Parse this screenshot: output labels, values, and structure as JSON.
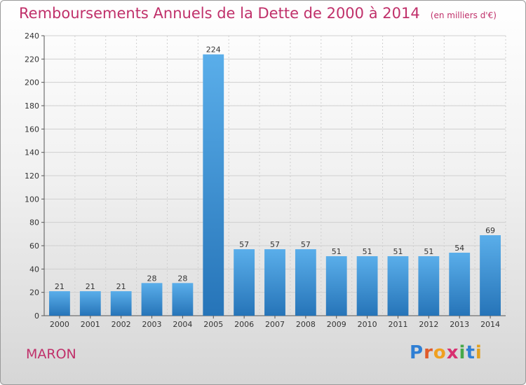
{
  "page": {
    "title": "Remboursements Annuels de la Dette de 2000 à 2014",
    "unit": "(en milliers d'€)",
    "commune": "MARON",
    "logo": {
      "text": "Proxiti",
      "letters": [
        {
          "ch": "P",
          "color": "#2f7fd4"
        },
        {
          "ch": "r",
          "color": "#e05a2a"
        },
        {
          "ch": "o",
          "color": "#f0a020"
        },
        {
          "ch": "x",
          "color": "#d83070"
        },
        {
          "ch": "i",
          "color": "#46a84a"
        },
        {
          "ch": "t",
          "color": "#2f7fd4"
        },
        {
          "ch": "i",
          "color": "#e0a020"
        }
      ]
    }
  },
  "colors": {
    "bar_light": "#5aaeea",
    "bar_dark": "#2674b8",
    "title": "#c0306a",
    "grid": "#cfcfcf"
  },
  "chart_data": {
    "type": "bar",
    "title": "Remboursements Annuels de la Dette de 2000 à 2014",
    "categories": [
      "2000",
      "2001",
      "2002",
      "2003",
      "2004",
      "2005",
      "2006",
      "2007",
      "2008",
      "2009",
      "2010",
      "2011",
      "2012",
      "2013",
      "2014"
    ],
    "values": [
      21,
      21,
      21,
      28,
      28,
      224,
      57,
      57,
      57,
      51,
      51,
      51,
      51,
      54,
      69
    ],
    "ylim": [
      0,
      240
    ],
    "yticks": [
      0,
      20,
      40,
      60,
      80,
      100,
      120,
      140,
      160,
      180,
      200,
      220,
      240
    ],
    "grid": true,
    "data_labels": true
  }
}
